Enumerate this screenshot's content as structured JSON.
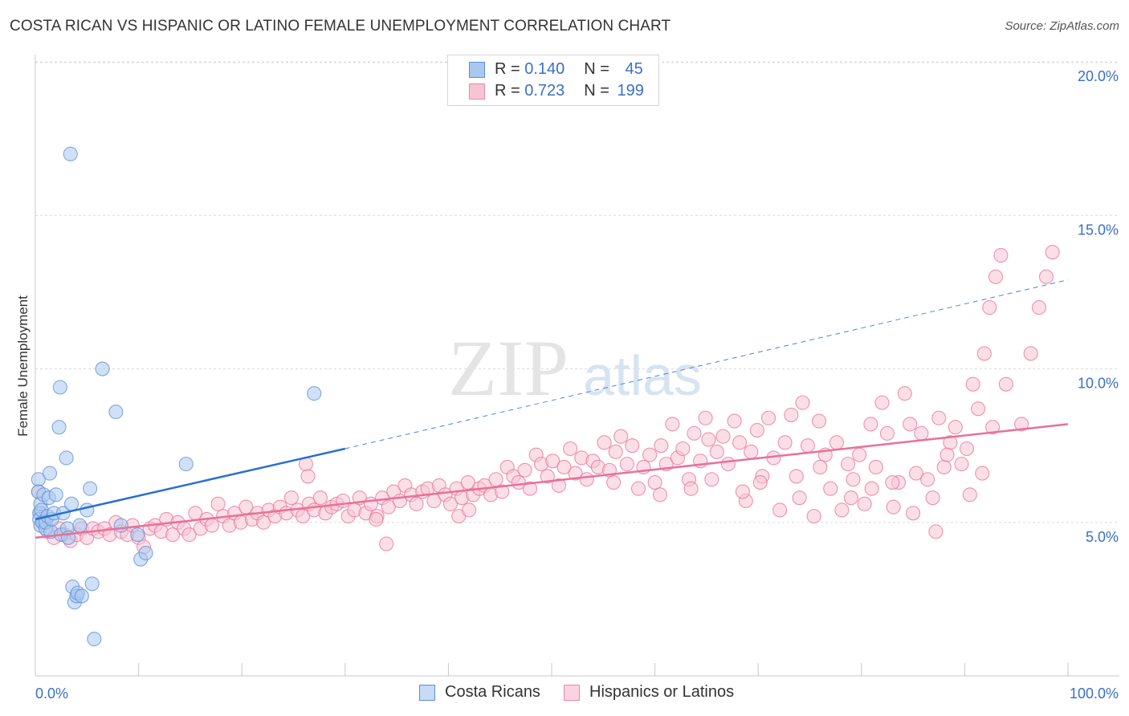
{
  "header": {
    "title": "COSTA RICAN VS HISPANIC OR LATINO FEMALE UNEMPLOYMENT CORRELATION CHART",
    "source": "Source: ZipAtlas.com"
  },
  "legend": {
    "rows": [
      {
        "r_label": "R = ",
        "r_value": "0.140",
        "n_label": "N = ",
        "n_value": "45",
        "color": "#a9c8f0",
        "border": "#5b8fd6"
      },
      {
        "r_label": "R = ",
        "r_value": "0.723",
        "n_label": "N = ",
        "n_value": "199",
        "color": "#f8c4d4",
        "border": "#e889a8"
      }
    ]
  },
  "bottom_legend": {
    "items": [
      {
        "label": "Costa Ricans",
        "color": "#c5dbf6",
        "border": "#5b8fd6"
      },
      {
        "label": "Hispanics or Latinos",
        "color": "#fbd3e0",
        "border": "#e889a8"
      }
    ]
  },
  "watermark": {
    "zip": "ZIP",
    "atlas": "atlas"
  },
  "chart_data": {
    "type": "scatter",
    "title": "COSTA RICAN VS HISPANIC OR LATINO FEMALE UNEMPLOYMENT CORRELATION CHART",
    "ylabel": "Female Unemployment",
    "xlabel": "",
    "xlim": [
      0,
      100
    ],
    "ylim": [
      0,
      20.5
    ],
    "x_tick_labels": [
      "0.0%",
      "100.0%"
    ],
    "y_ticks": [
      5,
      10,
      15,
      20
    ],
    "y_tick_labels": [
      "5.0%",
      "10.0%",
      "15.0%",
      "20.0%"
    ],
    "grid": "horizontal dashed",
    "series": [
      {
        "name": "Costa Ricans",
        "color": "#5b8fd6",
        "fill": "#a9c8f0",
        "points": [
          [
            0.3,
            6.4
          ],
          [
            0.3,
            6.0
          ],
          [
            0.4,
            5.3
          ],
          [
            0.4,
            5.1
          ],
          [
            0.5,
            5.6
          ],
          [
            0.5,
            4.9
          ],
          [
            0.6,
            5.4
          ],
          [
            0.7,
            5.0
          ],
          [
            0.8,
            5.9
          ],
          [
            1.0,
            4.8
          ],
          [
            1.0,
            5.0
          ],
          [
            1.2,
            5.2
          ],
          [
            1.3,
            5.8
          ],
          [
            1.4,
            6.6
          ],
          [
            1.5,
            4.7
          ],
          [
            1.6,
            5.1
          ],
          [
            1.8,
            5.3
          ],
          [
            2.0,
            5.9
          ],
          [
            2.3,
            8.1
          ],
          [
            2.4,
            9.4
          ],
          [
            2.5,
            4.6
          ],
          [
            2.7,
            5.3
          ],
          [
            3.0,
            7.1
          ],
          [
            3.1,
            4.8
          ],
          [
            3.2,
            4.5
          ],
          [
            3.5,
            5.6
          ],
          [
            3.6,
            2.9
          ],
          [
            3.8,
            2.4
          ],
          [
            4.0,
            2.6
          ],
          [
            4.1,
            2.7
          ],
          [
            4.3,
            4.9
          ],
          [
            4.5,
            2.6
          ],
          [
            5.0,
            5.4
          ],
          [
            5.3,
            6.1
          ],
          [
            5.5,
            3.0
          ],
          [
            5.7,
            1.2
          ],
          [
            6.5,
            10.0
          ],
          [
            7.8,
            8.6
          ],
          [
            8.3,
            4.9
          ],
          [
            9.9,
            4.6
          ],
          [
            10.2,
            3.8
          ],
          [
            10.7,
            4.0
          ],
          [
            14.6,
            6.9
          ],
          [
            27.0,
            9.2
          ],
          [
            3.4,
            17.0
          ]
        ],
        "trend": {
          "x0": 0,
          "y0": 5.1,
          "x1": 30,
          "y1": 7.4,
          "x_end": 100,
          "y_end": 12.9
        }
      },
      {
        "name": "Hispanics or Latinos",
        "color": "#e8709a",
        "fill": "#f8c4d4",
        "points": [
          [
            0.3,
            6.0
          ],
          [
            0.5,
            5.3
          ],
          [
            0.8,
            5.0
          ],
          [
            1.2,
            4.7
          ],
          [
            1.8,
            4.5
          ],
          [
            2.3,
            4.8
          ],
          [
            2.8,
            4.6
          ],
          [
            3.4,
            4.4
          ],
          [
            4.0,
            4.6
          ],
          [
            4.5,
            4.8
          ],
          [
            5.0,
            4.5
          ],
          [
            5.6,
            4.8
          ],
          [
            6.1,
            4.7
          ],
          [
            6.7,
            4.8
          ],
          [
            7.2,
            4.6
          ],
          [
            7.8,
            5.0
          ],
          [
            8.3,
            4.7
          ],
          [
            8.9,
            4.6
          ],
          [
            9.4,
            4.9
          ],
          [
            10.0,
            4.5
          ],
          [
            10.5,
            4.2
          ],
          [
            11.1,
            4.8
          ],
          [
            11.6,
            4.9
          ],
          [
            12.2,
            4.7
          ],
          [
            12.7,
            5.1
          ],
          [
            13.3,
            4.6
          ],
          [
            13.8,
            5.0
          ],
          [
            14.4,
            4.8
          ],
          [
            14.9,
            4.6
          ],
          [
            15.5,
            5.3
          ],
          [
            16.0,
            4.8
          ],
          [
            16.6,
            5.1
          ],
          [
            17.1,
            4.9
          ],
          [
            17.7,
            5.6
          ],
          [
            18.2,
            5.2
          ],
          [
            18.8,
            4.9
          ],
          [
            19.3,
            5.3
          ],
          [
            19.9,
            5.0
          ],
          [
            20.4,
            5.5
          ],
          [
            21.0,
            5.1
          ],
          [
            21.5,
            5.3
          ],
          [
            22.1,
            5.0
          ],
          [
            22.6,
            5.4
          ],
          [
            23.2,
            5.2
          ],
          [
            23.7,
            5.5
          ],
          [
            24.3,
            5.3
          ],
          [
            24.8,
            5.8
          ],
          [
            25.4,
            5.4
          ],
          [
            25.9,
            5.2
          ],
          [
            26.5,
            5.6
          ],
          [
            27.0,
            5.4
          ],
          [
            27.6,
            5.8
          ],
          [
            28.1,
            5.3
          ],
          [
            28.7,
            5.5
          ],
          [
            29.2,
            5.6
          ],
          [
            29.8,
            5.7
          ],
          [
            30.3,
            5.2
          ],
          [
            30.9,
            5.4
          ],
          [
            31.4,
            5.8
          ],
          [
            32.0,
            5.3
          ],
          [
            32.5,
            5.6
          ],
          [
            33.1,
            5.2
          ],
          [
            33.6,
            5.8
          ],
          [
            34.2,
            5.5
          ],
          [
            34.7,
            6.0
          ],
          [
            35.3,
            5.7
          ],
          [
            35.8,
            6.2
          ],
          [
            36.4,
            5.9
          ],
          [
            36.9,
            5.6
          ],
          [
            37.5,
            6.0
          ],
          [
            38.0,
            6.1
          ],
          [
            38.6,
            5.7
          ],
          [
            39.1,
            6.2
          ],
          [
            39.7,
            5.9
          ],
          [
            40.2,
            5.6
          ],
          [
            40.8,
            6.1
          ],
          [
            41.3,
            5.8
          ],
          [
            41.9,
            6.3
          ],
          [
            42.4,
            5.9
          ],
          [
            43.0,
            6.1
          ],
          [
            43.5,
            6.2
          ],
          [
            44.1,
            5.9
          ],
          [
            44.6,
            6.4
          ],
          [
            45.2,
            6.0
          ],
          [
            45.7,
            6.8
          ],
          [
            46.3,
            6.5
          ],
          [
            46.8,
            6.3
          ],
          [
            47.4,
            6.7
          ],
          [
            47.9,
            6.1
          ],
          [
            48.5,
            7.2
          ],
          [
            49.0,
            6.9
          ],
          [
            49.6,
            6.5
          ],
          [
            50.1,
            7.0
          ],
          [
            50.7,
            6.2
          ],
          [
            51.2,
            6.8
          ],
          [
            51.8,
            7.4
          ],
          [
            52.3,
            6.6
          ],
          [
            52.9,
            7.1
          ],
          [
            53.4,
            6.4
          ],
          [
            54.0,
            7.0
          ],
          [
            54.5,
            6.8
          ],
          [
            55.1,
            7.6
          ],
          [
            55.6,
            6.7
          ],
          [
            56.2,
            7.3
          ],
          [
            56.7,
            7.8
          ],
          [
            57.3,
            6.9
          ],
          [
            57.8,
            7.5
          ],
          [
            58.4,
            6.1
          ],
          [
            58.9,
            6.8
          ],
          [
            59.5,
            7.2
          ],
          [
            60.0,
            6.3
          ],
          [
            60.6,
            7.5
          ],
          [
            61.1,
            6.9
          ],
          [
            61.7,
            8.2
          ],
          [
            62.2,
            7.1
          ],
          [
            62.7,
            7.4
          ],
          [
            63.3,
            6.4
          ],
          [
            63.8,
            7.9
          ],
          [
            64.4,
            7.0
          ],
          [
            64.9,
            8.4
          ],
          [
            65.5,
            6.4
          ],
          [
            66.0,
            7.3
          ],
          [
            66.6,
            7.8
          ],
          [
            67.1,
            6.9
          ],
          [
            67.7,
            8.3
          ],
          [
            68.2,
            7.6
          ],
          [
            68.8,
            5.7
          ],
          [
            69.3,
            7.3
          ],
          [
            69.9,
            8.0
          ],
          [
            70.4,
            6.5
          ],
          [
            71.0,
            8.4
          ],
          [
            71.5,
            7.1
          ],
          [
            72.1,
            5.4
          ],
          [
            72.6,
            7.6
          ],
          [
            73.2,
            8.5
          ],
          [
            73.7,
            6.5
          ],
          [
            74.3,
            8.9
          ],
          [
            74.8,
            7.5
          ],
          [
            75.4,
            5.2
          ],
          [
            75.9,
            8.3
          ],
          [
            76.5,
            7.2
          ],
          [
            77.0,
            6.1
          ],
          [
            77.6,
            7.6
          ],
          [
            78.1,
            5.4
          ],
          [
            78.7,
            6.9
          ],
          [
            79.2,
            6.4
          ],
          [
            79.8,
            7.2
          ],
          [
            80.3,
            5.6
          ],
          [
            80.9,
            8.2
          ],
          [
            81.4,
            6.8
          ],
          [
            82.0,
            8.9
          ],
          [
            82.5,
            7.9
          ],
          [
            83.1,
            5.5
          ],
          [
            83.6,
            6.3
          ],
          [
            84.2,
            9.2
          ],
          [
            84.7,
            8.2
          ],
          [
            85.3,
            6.6
          ],
          [
            85.8,
            7.9
          ],
          [
            86.4,
            6.4
          ],
          [
            86.9,
            5.8
          ],
          [
            87.5,
            8.4
          ],
          [
            88.0,
            6.8
          ],
          [
            88.6,
            7.6
          ],
          [
            89.1,
            8.1
          ],
          [
            89.7,
            6.9
          ],
          [
            90.2,
            7.4
          ],
          [
            90.8,
            9.5
          ],
          [
            91.3,
            8.7
          ],
          [
            91.9,
            10.5
          ],
          [
            92.4,
            12.0
          ],
          [
            93.0,
            13.0
          ],
          [
            93.5,
            13.7
          ],
          [
            33.0,
            5.1
          ],
          [
            34.0,
            4.3
          ],
          [
            26.2,
            6.9
          ],
          [
            26.4,
            6.5
          ],
          [
            41.0,
            5.2
          ],
          [
            42.0,
            5.4
          ],
          [
            56.0,
            6.3
          ],
          [
            60.5,
            5.9
          ],
          [
            63.5,
            6.1
          ],
          [
            65.2,
            7.7
          ],
          [
            68.5,
            6.0
          ],
          [
            70.2,
            6.3
          ],
          [
            74.0,
            5.8
          ],
          [
            76.0,
            6.8
          ],
          [
            79.0,
            5.8
          ],
          [
            81.0,
            6.1
          ],
          [
            83.0,
            6.3
          ],
          [
            85.0,
            5.3
          ],
          [
            87.2,
            4.7
          ],
          [
            88.3,
            7.2
          ],
          [
            90.5,
            5.9
          ],
          [
            91.7,
            6.6
          ],
          [
            92.7,
            8.1
          ],
          [
            94.0,
            9.5
          ],
          [
            95.5,
            8.2
          ],
          [
            96.4,
            10.5
          ],
          [
            97.2,
            12.0
          ],
          [
            97.9,
            13.0
          ],
          [
            98.5,
            13.8
          ]
        ],
        "trend": {
          "x0": 0,
          "y0": 4.5,
          "x1": 100,
          "y1": 8.2
        }
      }
    ]
  }
}
